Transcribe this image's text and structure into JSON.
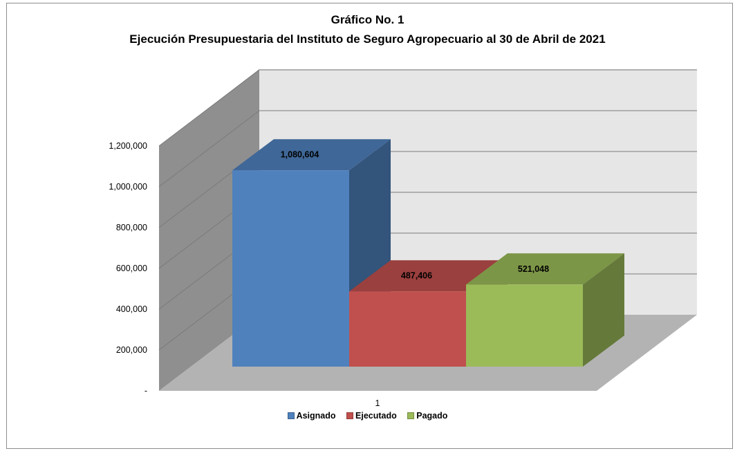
{
  "chart_data": {
    "type": "bar",
    "title": "Gráfico No. 1",
    "subtitle": "Ejecución Presupuestaria del Instituto de Seguro Agropecuario al  30 de  Abril de 2021",
    "categories": [
      "1"
    ],
    "series": [
      {
        "name": "Asignado",
        "values": [
          1080604
        ],
        "color": "#4f81bd",
        "label": "1,080,604"
      },
      {
        "name": "Ejecutado",
        "values": [
          487406
        ],
        "color": "#c0504d",
        "label": "487,406"
      },
      {
        "name": "Pagado",
        "values": [
          521048
        ],
        "color": "#9bbb59",
        "label": "521,048"
      }
    ],
    "ylim": [
      0,
      1200000
    ],
    "yticks": [
      {
        "value": 0,
        "label": "-"
      },
      {
        "value": 200000,
        "label": "200,000"
      },
      {
        "value": 400000,
        "label": "400,000"
      },
      {
        "value": 600000,
        "label": "600,000"
      },
      {
        "value": 800000,
        "label": "800,000"
      },
      {
        "value": 1000000,
        "label": "1,000,000"
      },
      {
        "value": 1200000,
        "label": "1,200,000"
      }
    ],
    "xlabel": "",
    "ylabel": "",
    "grid": true,
    "style": "3d-column",
    "legend_position": "bottom"
  }
}
